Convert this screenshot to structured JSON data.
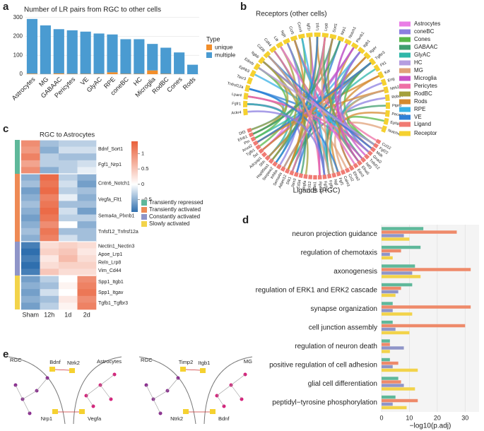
{
  "panel_labels": [
    "a",
    "b",
    "c",
    "d",
    "e"
  ],
  "chart_data": [
    {
      "type": "stacked_bar",
      "title": "Number of LR pairs from RGC to other cells",
      "categories": [
        "Astrocytes",
        "MG",
        "GABAAC",
        "Pericytes",
        "VE",
        "GlyAC",
        "RPE",
        "coneBC",
        "HC",
        "Microglia",
        "RodBC",
        "Cones",
        "Rods"
      ],
      "series": [
        {
          "name": "unique",
          "color": "#f28e2b",
          "values": [
            3,
            1,
            4,
            2,
            2,
            2,
            10,
            2,
            2,
            20,
            2,
            1,
            0
          ]
        },
        {
          "name": "multiple",
          "color": "#4a9bd1",
          "values": [
            289,
            257,
            234,
            230,
            223,
            213,
            200,
            183,
            183,
            140,
            138,
            114,
            50
          ]
        }
      ],
      "legend_title": "Type",
      "ylim": [
        0,
        310
      ],
      "yticks": [
        0,
        100,
        200,
        300
      ],
      "grid": true
    },
    {
      "type": "chord",
      "receptor_title": "Receptors (other cells)",
      "ligand_title": "Ligands (RGC)",
      "receptors": [
        "Ackr4",
        "Fgfr1",
        "Lpar4",
        "Tnfrsf12a",
        "Tacr3",
        "Ephb3",
        "Ednrb",
        "Itgb6",
        "Cd36",
        "Cd44",
        "Lifr",
        "Ngfr",
        "Ccr5",
        "Cxcr4",
        "Igf1r",
        "Lrp1",
        "Lrp8",
        "Sort1",
        "Nrp1",
        "Notch1",
        "Plxnb1",
        "Itgb1",
        "Itgav",
        "Tgfbr3",
        "Flt1",
        "Kdr",
        "Eng",
        "Ntrk2",
        "Robo4",
        "Ptprb",
        "Pecam1",
        "Ephb4",
        "Notch4"
      ],
      "ligands": [
        "Ccl12",
        "Fgf22",
        "Mdk",
        "Gnai2",
        "Tnfsf12",
        "Ntf3",
        "Efna5",
        "Edn3",
        "Efna2",
        "Ccl2",
        "Calm1",
        "Fgf1",
        "Ngf",
        "Fgf9",
        "Fgf13",
        "Rps19",
        "Lgals1",
        "Cxcl12",
        "Vegfa",
        "Cd34",
        "Jam3",
        "Dlk1",
        "Adam12",
        "Sema4a",
        "Inhba",
        "Serpine2",
        "Hsp90aa1",
        "Shh",
        "Adcyap1",
        "Sst",
        "Tgfb1",
        "Anxa2",
        "Ptn",
        "Efnb1",
        "Dll3"
      ],
      "cell_types": [
        {
          "name": "Astrocytes",
          "color": "#e97ee6"
        },
        {
          "name": "coneBC",
          "color": "#8c7fe0"
        },
        {
          "name": "Cones",
          "color": "#59b84a"
        },
        {
          "name": "GABAAC",
          "color": "#3f9e6e"
        },
        {
          "name": "GlyAC",
          "color": "#2fb7a9"
        },
        {
          "name": "HC",
          "color": "#b59de0"
        },
        {
          "name": "MG",
          "color": "#e0a17a"
        },
        {
          "name": "Microglia",
          "color": "#c951c8"
        },
        {
          "name": "Pericytes",
          "color": "#ee6fa6"
        },
        {
          "name": "RodBC",
          "color": "#a4a03c"
        },
        {
          "name": "Rods",
          "color": "#d48a2f"
        },
        {
          "name": "RPE",
          "color": "#3ab2e6"
        },
        {
          "name": "VE",
          "color": "#2f7fd6"
        }
      ],
      "roles": [
        {
          "name": "Ligand",
          "color": "#f07b74"
        },
        {
          "name": "Receptor",
          "color": "#f5d130"
        }
      ]
    },
    {
      "type": "heatmap",
      "title": "RGC to Astrocytes",
      "columns": [
        "Sham",
        "12h",
        "1d",
        "2d"
      ],
      "clim": [
        -0.9,
        1.4
      ],
      "cticks": [
        1,
        0.5,
        0,
        {
          "value": -0.5,
          "label": "−0.5"
        }
      ],
      "groups": [
        {
          "name": "Transiently repressed",
          "color": "#5fb89a",
          "genes": [
            "Bdnf_Sort1",
            "Fgf1_Nrp1"
          ],
          "rows": [
            [
              1.0,
              -0.4,
              -0.3,
              -0.3
            ],
            [
              0.9,
              -0.5,
              -0.2,
              -0.2
            ],
            [
              1.1,
              -0.3,
              -0.4,
              -0.4
            ],
            [
              0.8,
              -0.3,
              -0.3,
              -0.2
            ],
            [
              1.0,
              -0.5,
              -0.3,
              -0.1
            ]
          ]
        },
        {
          "name": "Transiently activated",
          "color": "#ee8a55",
          "genes": [
            "Cntn6_Notch1",
            "Vegfa_Flt1",
            "Sema4a_Plxnb1",
            "Tnfsf12_Tnfrsf12a"
          ],
          "rows": [
            [
              -0.5,
              1.3,
              -0.3,
              -0.5
            ],
            [
              -0.4,
              1.2,
              -0.2,
              -0.6
            ],
            [
              -0.6,
              1.3,
              -0.3,
              -0.4
            ],
            [
              -0.5,
              1.1,
              -0.1,
              -0.5
            ],
            [
              -0.4,
              1.2,
              -0.4,
              -0.4
            ],
            [
              -0.5,
              1.3,
              -0.2,
              -0.6
            ],
            [
              -0.6,
              1.2,
              -0.3,
              -0.3
            ],
            [
              -0.5,
              1.0,
              0.0,
              -0.5
            ],
            [
              -0.4,
              1.2,
              -0.4,
              -0.4
            ],
            [
              -0.5,
              1.1,
              -0.2,
              -0.4
            ]
          ]
        },
        {
          "name": "Constantly activated",
          "color": "#8f95c8",
          "genes": [
            "Nectin1_Nectin3",
            "Apoe_Lrp1",
            "Reln_Lrp8",
            "Vim_Cd44"
          ],
          "rows": [
            [
              -0.8,
              0.3,
              0.4,
              0.3
            ],
            [
              -0.9,
              0.4,
              0.5,
              0.2
            ],
            [
              -0.8,
              0.2,
              0.6,
              0.3
            ],
            [
              -0.9,
              0.3,
              0.4,
              0.4
            ],
            [
              -0.8,
              0.5,
              0.3,
              0.3
            ]
          ]
        },
        {
          "name": "Slowly activated",
          "color": "#f2d34a",
          "genes": [
            "Spp1_Itgb1",
            "Spp1_Itgav",
            "Tgfb1_Tgfbr3"
          ],
          "rows": [
            [
              -0.6,
              -0.3,
              0.0,
              1.0
            ],
            [
              -0.5,
              -0.4,
              0.1,
              1.1
            ],
            [
              -0.6,
              -0.2,
              0.0,
              1.2
            ],
            [
              -0.5,
              -0.4,
              0.2,
              1.0
            ],
            [
              -0.6,
              -0.3,
              0.1,
              1.1
            ]
          ]
        }
      ]
    },
    {
      "type": "grouped_hbar",
      "categories": [
        "neuron projection guidance",
        "regulation of chemotaxis",
        "axonogenesis",
        "regulation of ERK1 and ERK2 cascade",
        "synapse organization",
        "cell junction assembly",
        "regulation of neuron death",
        "positive regulation of cell adhesion",
        "glial cell differentiation",
        "peptidyl−tyrosine phosphorylation"
      ],
      "series": [
        {
          "color": "#5fb89a",
          "values": [
            15,
            14,
            12,
            11,
            4,
            4,
            3,
            3,
            6,
            5
          ]
        },
        {
          "color": "#ee8a6a",
          "values": [
            27,
            7,
            32,
            7,
            32,
            30,
            3,
            6,
            7,
            13
          ]
        },
        {
          "color": "#8f95c8",
          "values": [
            8,
            3,
            11,
            6,
            4,
            5,
            8,
            4,
            8,
            4
          ]
        },
        {
          "color": "#f2d34a",
          "values": [
            10,
            4,
            14,
            5,
            11,
            10,
            3,
            13,
            12,
            9
          ]
        }
      ],
      "xlabel": "−log10(p.adj)",
      "xlim": [
        0,
        35
      ],
      "xticks": [
        0,
        10,
        20,
        30
      ],
      "grid": true
    }
  ],
  "panel_e": [
    {
      "labels": [
        "RGC",
        "Bdnf",
        "Ntrk2",
        "Astrocytes",
        "Nrp1",
        "Vegfa"
      ]
    },
    {
      "labels": [
        "RGC",
        "Timp2",
        "Itgb1",
        "MG",
        "Ntrk2",
        "Bdnf"
      ]
    }
  ]
}
